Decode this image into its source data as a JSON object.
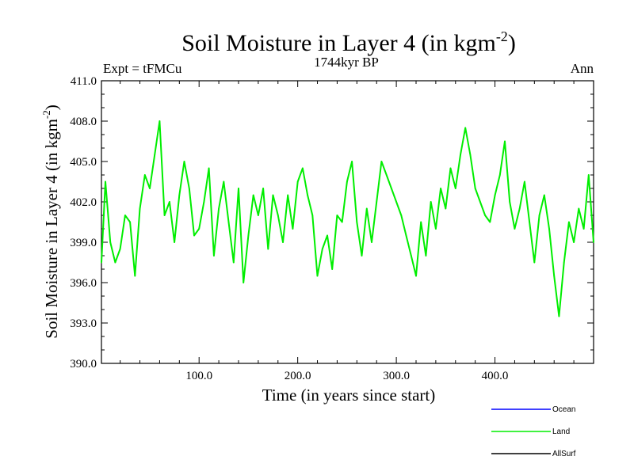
{
  "chart_data": {
    "type": "line",
    "title": "Soil Moisture in Layer 4 (in kgm",
    "title_sup": "-2",
    "title_end": ")",
    "subtitle": "1744kyr BP",
    "left_label": "Expt = tFMCu",
    "right_label": "Ann",
    "xlabel": "Time (in years since start)",
    "ylabel": "Soil Moisture in Layer 4 (in kgm",
    "ylabel_sup": "-2",
    "ylabel_end": ")",
    "xlim": [
      1,
      500
    ],
    "ylim": [
      390.0,
      411.0
    ],
    "x_ticks": [
      100,
      200,
      300,
      400
    ],
    "x_tick_labels": [
      "100.0",
      "200.0",
      "300.0",
      "400.0"
    ],
    "y_ticks": [
      390,
      393,
      396,
      399,
      402,
      405,
      408,
      411
    ],
    "y_tick_labels": [
      "390.0",
      "393.0",
      "396.0",
      "399.0",
      "402.0",
      "405.0",
      "408.0",
      "411.0"
    ],
    "legend": [
      {
        "name": "Ocean",
        "color": "#0000ff"
      },
      {
        "name": "Land",
        "color": "#00ee00"
      },
      {
        "name": "AllSurf",
        "color": "#000000"
      }
    ],
    "series": [
      {
        "name": "Land",
        "color": "#00ee00",
        "x": [
          1,
          5,
          10,
          15,
          20,
          25,
          30,
          35,
          40,
          45,
          50,
          55,
          60,
          65,
          70,
          75,
          80,
          85,
          90,
          95,
          100,
          105,
          110,
          115,
          120,
          125,
          130,
          135,
          140,
          145,
          150,
          155,
          160,
          165,
          170,
          175,
          180,
          185,
          190,
          195,
          200,
          205,
          210,
          215,
          220,
          225,
          230,
          235,
          240,
          245,
          250,
          255,
          260,
          265,
          270,
          275,
          280,
          285,
          290,
          295,
          300,
          305,
          310,
          315,
          320,
          325,
          330,
          335,
          340,
          345,
          350,
          355,
          360,
          365,
          370,
          375,
          380,
          385,
          390,
          395,
          400,
          405,
          410,
          415,
          420,
          425,
          430,
          435,
          440,
          445,
          450,
          455,
          460,
          465,
          470,
          475,
          480,
          485,
          490,
          495,
          500
        ],
        "values": [
          397.5,
          403.5,
          399.0,
          397.5,
          398.5,
          401.0,
          400.5,
          396.5,
          401.5,
          404.0,
          403.0,
          405.5,
          408.0,
          401.0,
          402.0,
          399.0,
          402.5,
          405.0,
          403.0,
          399.5,
          400.0,
          402.0,
          404.5,
          398.0,
          401.5,
          403.5,
          400.5,
          397.5,
          403.0,
          396.0,
          399.5,
          402.5,
          401.0,
          403.0,
          398.5,
          402.5,
          401.0,
          399.0,
          402.5,
          400.0,
          403.5,
          404.5,
          402.5,
          401.0,
          396.5,
          398.5,
          399.5,
          397.0,
          401.0,
          400.5,
          403.5,
          405.0,
          400.5,
          398.0,
          401.5,
          399.0,
          402.0,
          405.0,
          404.0,
          403.0,
          402.0,
          401.0,
          399.5,
          398.0,
          396.5,
          400.5,
          398.0,
          402.0,
          400.0,
          403.0,
          401.5,
          404.5,
          403.0,
          405.5,
          407.5,
          405.5,
          403.0,
          402.0,
          401.0,
          400.5,
          402.5,
          404.0,
          406.5,
          402.0,
          400.0,
          401.5,
          403.5,
          400.5,
          397.5,
          401.0,
          402.5,
          400.0,
          396.5,
          393.5,
          397.5,
          400.5,
          399.0,
          401.5,
          400.0,
          404.0,
          399.0
        ]
      }
    ]
  }
}
